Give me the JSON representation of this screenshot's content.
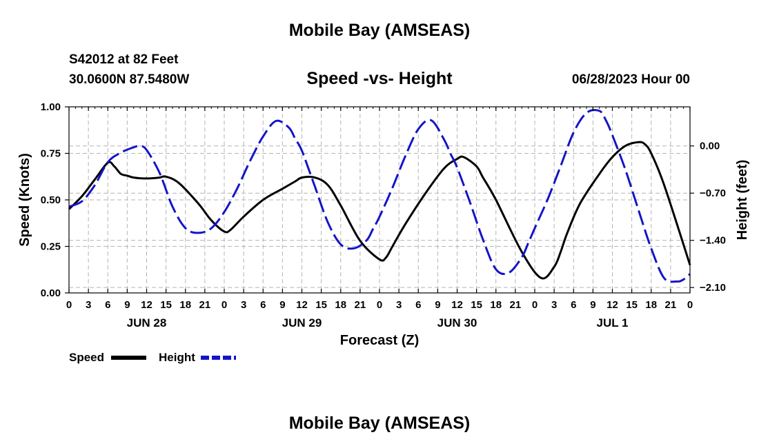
{
  "header": {
    "title": "Mobile Bay (AMSEAS)",
    "station": "S42012 at 82 Feet",
    "coordinates": "30.0600N  87.5480W",
    "plot_title": "Speed -vs- Height",
    "run_time": "06/28/2023 Hour 00"
  },
  "footer": {
    "title": "Mobile Bay (AMSEAS)"
  },
  "colors": {
    "speed": "#000000",
    "height": "#1414c8",
    "grid": "#b4b4b4"
  },
  "chart_data": {
    "type": "line",
    "xlabel": "Forecast (Z)",
    "ylabel_left": "Speed (Knots)",
    "ylabel_right": "Height (feet)",
    "x_range_hours": [
      0,
      96
    ],
    "xtick_step_hours": 3,
    "xtick_labels": [
      "0",
      "3",
      "6",
      "9",
      "12",
      "15",
      "18",
      "21",
      "0",
      "3",
      "6",
      "9",
      "12",
      "15",
      "18",
      "21",
      "0",
      "3",
      "6",
      "9",
      "12",
      "15",
      "18",
      "21",
      "0",
      "3",
      "6",
      "9",
      "12",
      "15",
      "18",
      "21",
      "0"
    ],
    "date_labels": [
      {
        "hour": 12,
        "label": "JUN 28"
      },
      {
        "hour": 36,
        "label": "JUN 29"
      },
      {
        "hour": 60,
        "label": "JUN 30"
      },
      {
        "hour": 84,
        "label": "JUL 1"
      }
    ],
    "ylim_left": [
      0,
      1.0
    ],
    "yticks_left": [
      0.0,
      0.25,
      0.5,
      0.75,
      1.0
    ],
    "ytick_labels_left": [
      "0.00",
      "0.25",
      "0.50",
      "0.75",
      "1.00"
    ],
    "ylim_right": [
      -2.18,
      0.58
    ],
    "yticks_right": [
      0.0,
      -0.7,
      -1.4,
      -2.1
    ],
    "ytick_labels_right": [
      "0.00",
      "−0.70",
      "−1.40",
      "−2.10"
    ],
    "legend": {
      "placement": "bottom-left",
      "entries": [
        "Speed",
        "Height"
      ]
    },
    "series": [
      {
        "name": "Speed",
        "axis": "left",
        "style": "solid",
        "x": [
          0,
          2,
          4,
          6,
          7,
          8,
          9,
          10,
          12,
          14,
          15,
          17,
          20,
          22,
          24,
          25,
          27,
          30,
          33,
          35,
          36,
          38,
          40,
          42,
          45,
          48,
          49,
          50,
          52,
          55,
          58,
          60,
          61,
          63,
          64,
          66,
          70,
          73,
          75,
          76,
          77,
          79,
          82,
          84,
          86,
          88,
          89,
          90,
          92,
          96
        ],
        "y": [
          0.45,
          0.52,
          0.61,
          0.7,
          0.68,
          0.64,
          0.63,
          0.62,
          0.615,
          0.62,
          0.625,
          0.59,
          0.48,
          0.39,
          0.33,
          0.34,
          0.41,
          0.5,
          0.56,
          0.6,
          0.62,
          0.62,
          0.58,
          0.47,
          0.28,
          0.18,
          0.19,
          0.25,
          0.37,
          0.53,
          0.67,
          0.72,
          0.73,
          0.68,
          0.62,
          0.5,
          0.22,
          0.08,
          0.14,
          0.22,
          0.32,
          0.48,
          0.64,
          0.73,
          0.79,
          0.81,
          0.8,
          0.75,
          0.58,
          0.15
        ]
      },
      {
        "name": "Height",
        "axis": "right",
        "style": "dashed",
        "x": [
          0,
          2,
          4,
          6,
          8,
          10,
          11,
          12,
          14,
          16,
          18,
          20,
          22,
          24,
          26,
          28,
          30,
          32,
          34,
          35,
          36,
          38,
          40,
          42,
          44,
          46,
          47,
          48,
          50,
          52,
          54,
          56,
          58,
          59,
          60,
          62,
          64,
          66,
          68,
          70,
          71,
          72,
          74,
          76,
          78,
          80,
          82,
          83,
          84,
          86,
          88,
          90,
          92,
          94,
          95,
          96
        ],
        "y": [
          -0.9,
          -0.82,
          -0.58,
          -0.24,
          -0.1,
          -0.02,
          0.0,
          -0.06,
          -0.4,
          -0.9,
          -1.22,
          -1.29,
          -1.22,
          -0.98,
          -0.63,
          -0.22,
          0.14,
          0.37,
          0.27,
          0.1,
          -0.07,
          -0.6,
          -1.13,
          -1.46,
          -1.52,
          -1.4,
          -1.23,
          -1.05,
          -0.62,
          -0.15,
          0.25,
          0.38,
          0.09,
          -0.12,
          -0.32,
          -0.84,
          -1.39,
          -1.83,
          -1.88,
          -1.65,
          -1.44,
          -1.22,
          -0.79,
          -0.3,
          0.2,
          0.49,
          0.52,
          0.38,
          0.16,
          -0.35,
          -0.94,
          -1.52,
          -1.96,
          -2.01,
          -1.98,
          -1.9
        ]
      }
    ]
  }
}
